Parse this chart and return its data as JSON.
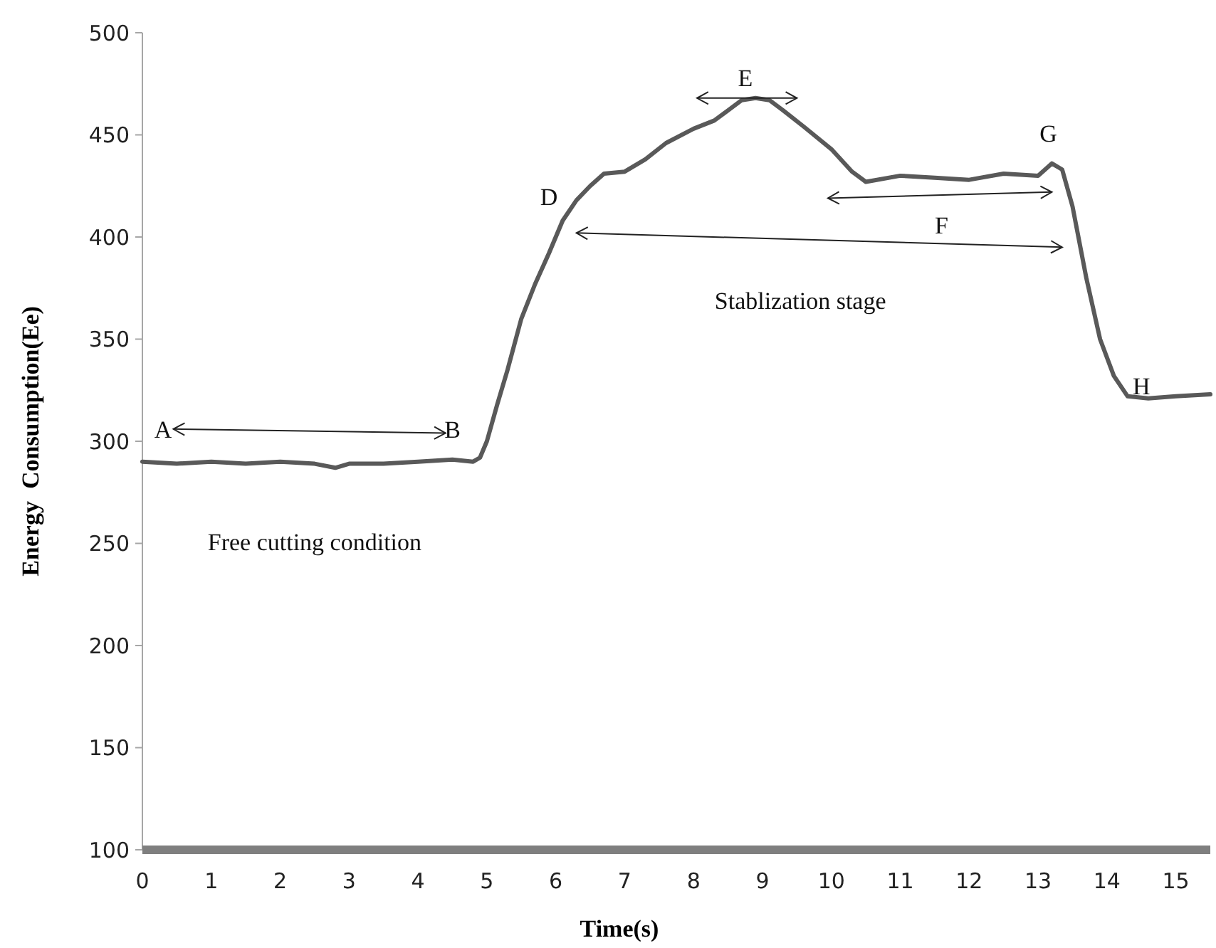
{
  "chart_data": {
    "type": "line",
    "xlabel": "Time(s)",
    "ylabel": "Energy  Consumption(Ee)",
    "xlim": [
      0,
      15.5
    ],
    "ylim": [
      100,
      500
    ],
    "xticks": [
      0,
      1,
      2,
      3,
      4,
      5,
      6,
      7,
      8,
      9,
      10,
      11,
      12,
      13,
      14,
      15
    ],
    "yticks": [
      100,
      150,
      200,
      250,
      300,
      350,
      400,
      450,
      500
    ],
    "grid": false,
    "line_style": "solid",
    "series": [
      {
        "color": "#595959",
        "x": [
          0,
          0.5,
          1,
          1.5,
          2,
          2.5,
          2.8,
          3,
          3.5,
          4,
          4.5,
          4.8,
          4.9,
          5,
          5.15,
          5.3,
          5.5,
          5.7,
          5.9,
          6.1,
          6.3,
          6.5,
          6.7,
          7,
          7.3,
          7.6,
          8,
          8.3,
          8.5,
          8.7,
          8.9,
          9.1,
          9.3,
          9.6,
          10,
          10.3,
          10.5,
          11,
          11.5,
          12,
          12.5,
          13,
          13.2,
          13.35,
          13.5,
          13.7,
          13.9,
          14.1,
          14.3,
          14.6,
          15,
          15.5
        ],
        "values": [
          290,
          289,
          290,
          289,
          290,
          289,
          287,
          289,
          289,
          290,
          291,
          290,
          292,
          300,
          318,
          335,
          360,
          377,
          392,
          408,
          418,
          425,
          431,
          432,
          438,
          446,
          453,
          457,
          462,
          467,
          468,
          467,
          462,
          454,
          443,
          432,
          427,
          430,
          429,
          428,
          431,
          430,
          436,
          433,
          415,
          380,
          350,
          332,
          322,
          321,
          322,
          323
        ]
      }
    ],
    "annotations": [
      "A",
      "B",
      "D",
      "E",
      "F",
      "G",
      "H",
      "Stablization stage",
      "Free cutting condition"
    ]
  }
}
